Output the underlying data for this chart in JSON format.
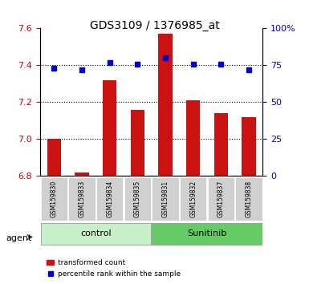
{
  "title": "GDS3109 / 1376985_at",
  "samples": [
    "GSM159830",
    "GSM159833",
    "GSM159834",
    "GSM159835",
    "GSM159831",
    "GSM159832",
    "GSM159837",
    "GSM159838"
  ],
  "bar_values": [
    7.0,
    6.82,
    7.32,
    7.16,
    7.57,
    7.21,
    7.14,
    7.12
  ],
  "percentile_values": [
    73,
    72,
    77,
    76,
    80,
    76,
    76,
    72
  ],
  "groups": [
    {
      "label": "control",
      "samples": [
        "GSM159830",
        "GSM159833",
        "GSM159834",
        "GSM159835"
      ],
      "color": "#c8f0c8"
    },
    {
      "label": "Sunitinib",
      "samples": [
        "GSM159831",
        "GSM159832",
        "GSM159837",
        "GSM159838"
      ],
      "color": "#66cc66"
    }
  ],
  "ylim_left": [
    6.8,
    7.6
  ],
  "ylim_right": [
    0,
    100
  ],
  "yticks_left": [
    6.8,
    7.0,
    7.2,
    7.4,
    7.6
  ],
  "yticks_right": [
    0,
    25,
    50,
    75,
    100
  ],
  "bar_color": "#cc1111",
  "dot_color": "#0000cc",
  "bar_width": 0.5,
  "legend_bar_label": "transformed count",
  "legend_dot_label": "percentile rank within the sample",
  "agent_label": "agent",
  "bg_color_plot": "#ffffff",
  "grid_color": "#000000",
  "tick_label_color_left": "#cc0000",
  "tick_label_color_right": "#0000cc",
  "sample_bg_color": "#d0d0d0"
}
